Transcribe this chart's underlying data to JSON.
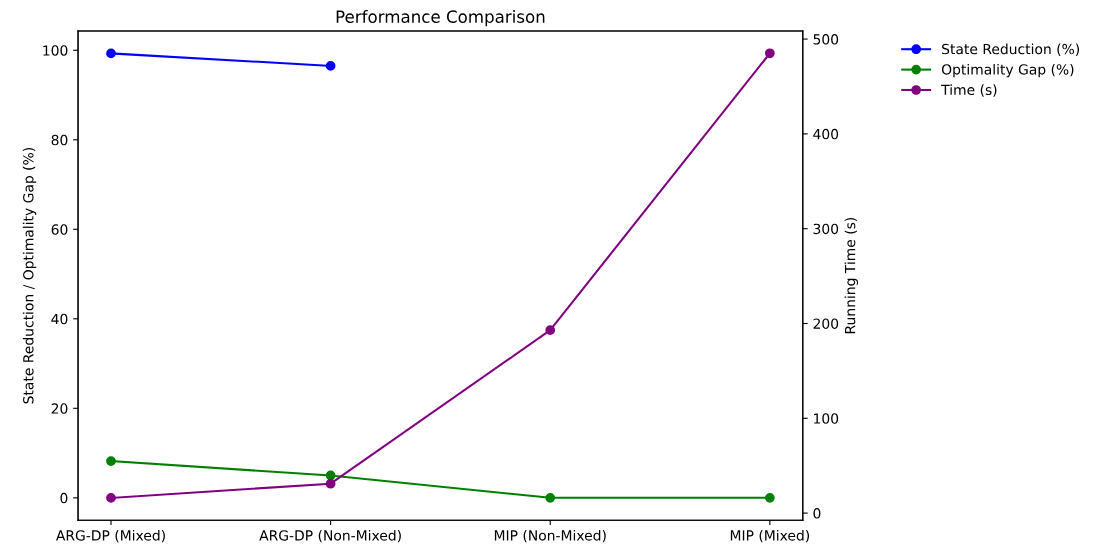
{
  "chart_data": {
    "type": "line",
    "title": "Performance Comparison",
    "categories": [
      "ARG-DP (Mixed)",
      "ARG-DP (Non-Mixed)",
      "MIP (Non-Mixed)",
      "MIP (Mixed)"
    ],
    "ylabel": "State Reduction / Optimality Gap (%)",
    "y2label": "Running Time (s)",
    "series": [
      {
        "name": "State Reduction (%)",
        "color": "#0000ff",
        "values": [
          99.3,
          96.5,
          null,
          null
        ]
      },
      {
        "name": "Optimality Gap (%)",
        "color": "#008000",
        "values": [
          8.2,
          5.0,
          0,
          0
        ]
      },
      {
        "name": "Time (s)",
        "color": "#800080",
        "values": [
          16,
          31,
          193,
          485
        ],
        "axis": "y2"
      }
    ],
    "ylim": [
      -5,
      104.3
    ],
    "yticks": [
      0,
      20,
      40,
      60,
      80,
      100
    ],
    "y2lim": [
      -7.5,
      508.5
    ],
    "y2ticks": [
      0,
      100,
      200,
      300,
      400,
      500
    ],
    "marker": "circle",
    "line_style": "solid",
    "legend": "top right",
    "grid": false
  }
}
